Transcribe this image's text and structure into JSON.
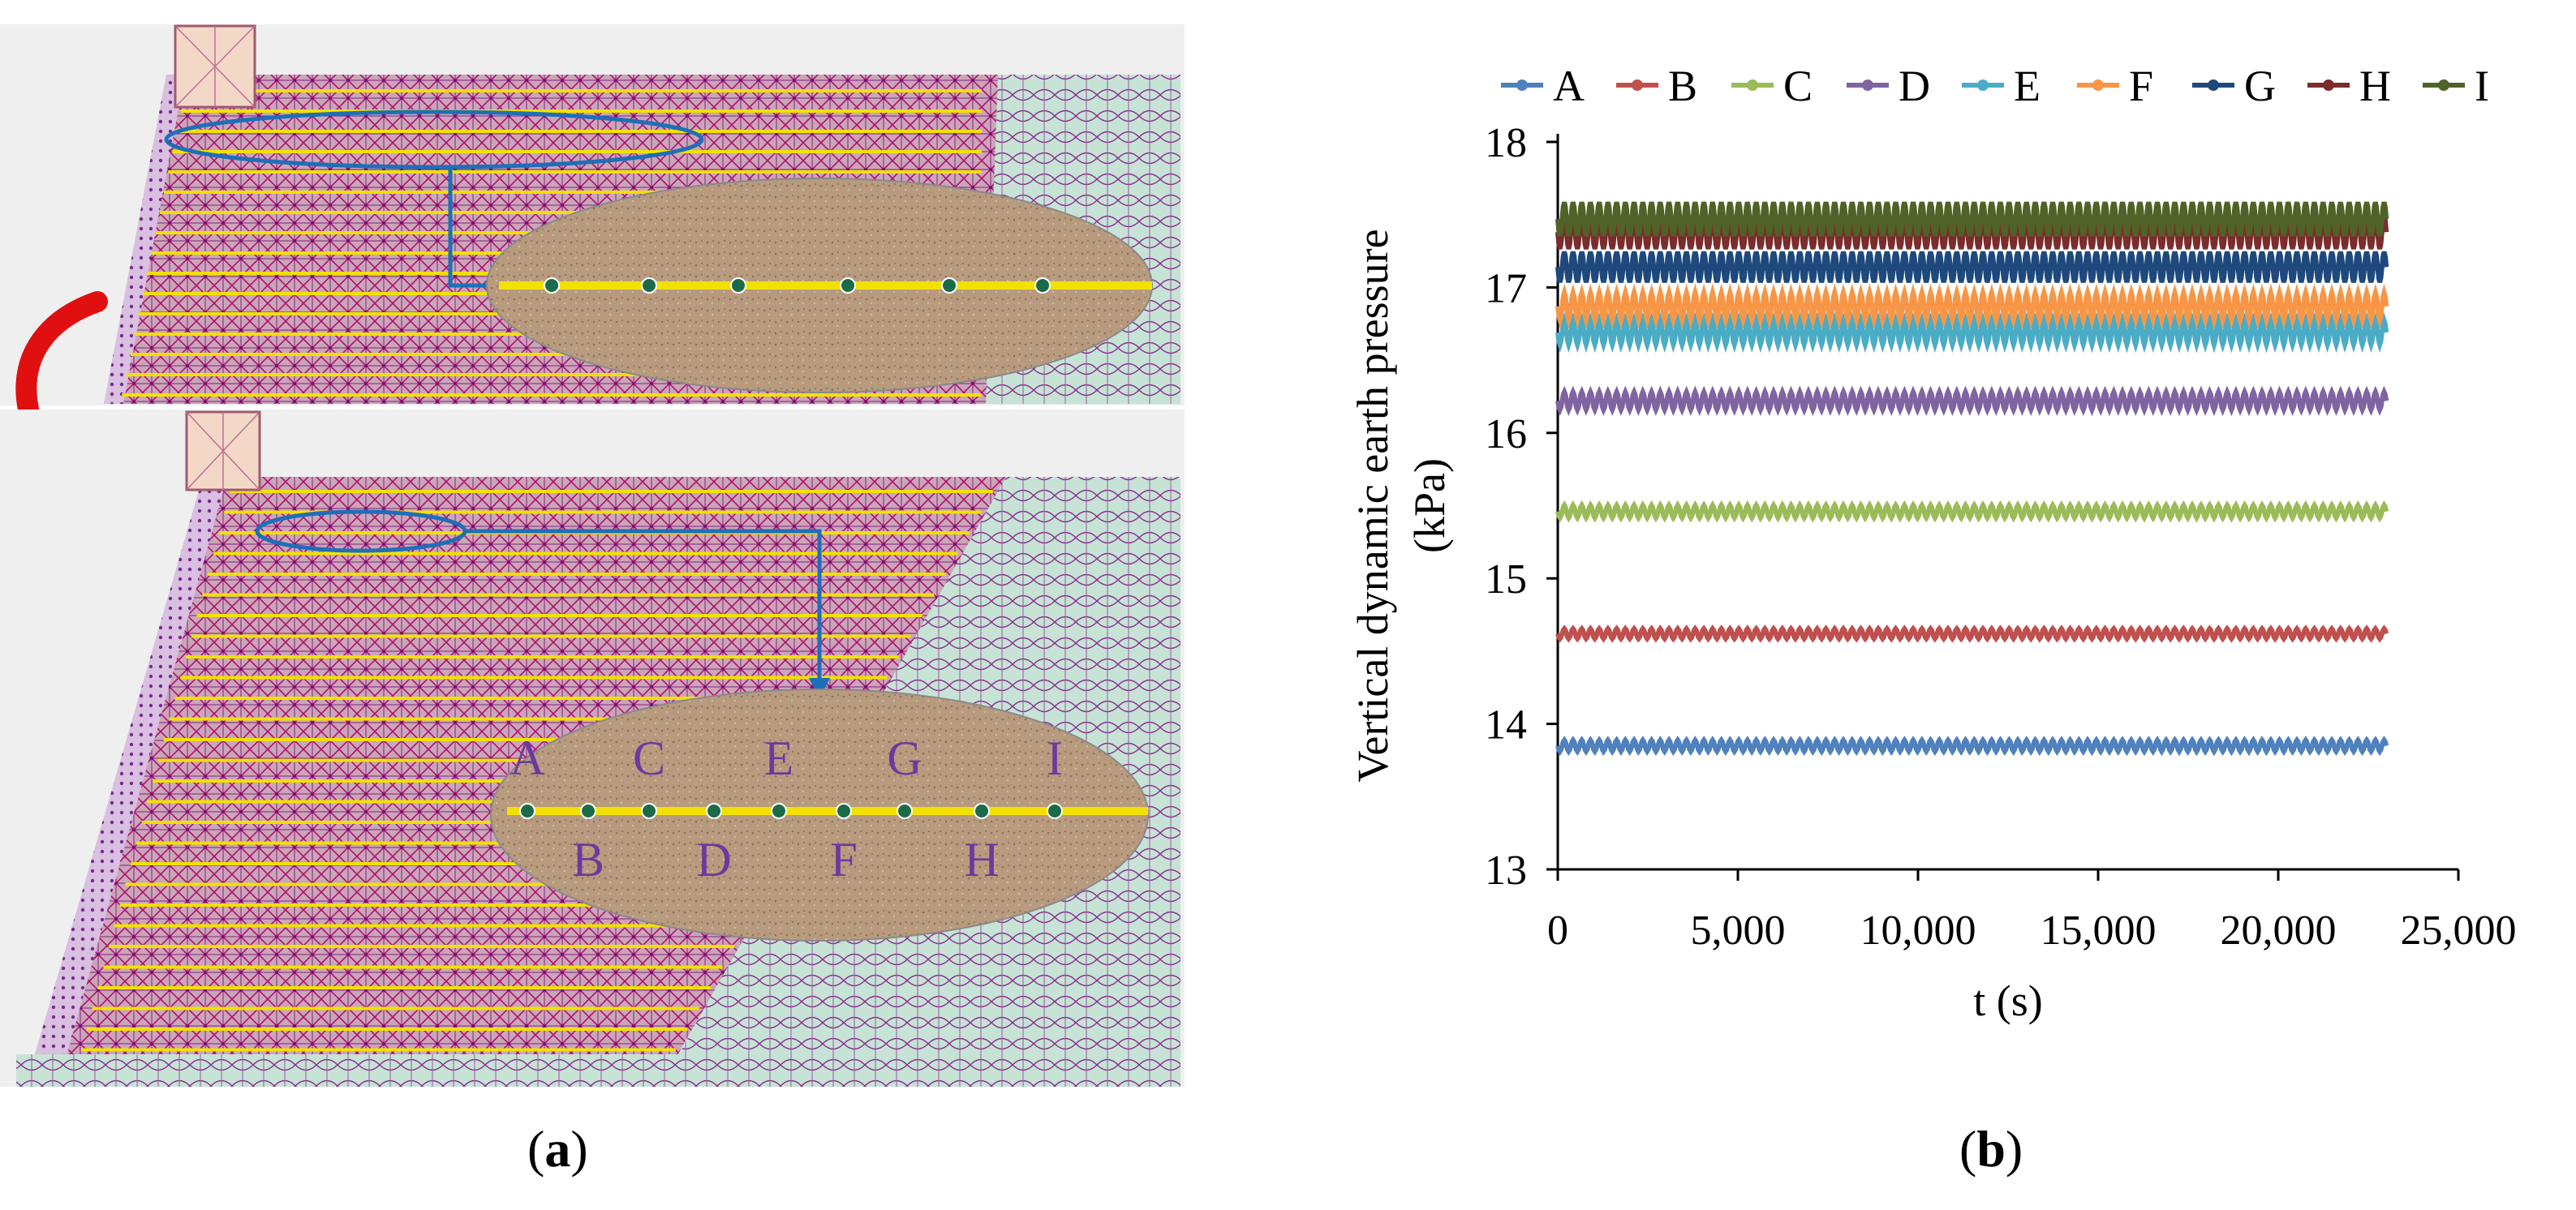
{
  "figure": {
    "caption_a": {
      "open": "(",
      "letter": "a",
      "close": ")"
    },
    "caption_b": {
      "open": "(",
      "letter": "b",
      "close": ")"
    }
  },
  "diagram": {
    "point_labels": [
      "A",
      "B",
      "C",
      "D",
      "E",
      "F",
      "G",
      "H",
      "I"
    ],
    "colors": {
      "background": "#efefef",
      "mesh_fill": "#c8a3b6",
      "mesh_line": "#a0005a",
      "reinforcement": "#f2e100",
      "soil": "#b79a7c",
      "ellipse_outline": "#1d6fb8",
      "arrow_red": "#e01010",
      "point_fill": "#1b6b4a",
      "label_purple": "#6a3aa0",
      "zone_green": "#bfe0cf"
    }
  },
  "chart_data": {
    "type": "line",
    "title": "",
    "xlabel": "t (s)",
    "ylabel_line1": "Vertical dynamic earth pressure",
    "ylabel_line2": "(kPa)",
    "xlim": [
      0,
      25000
    ],
    "ylim": [
      13,
      18
    ],
    "x_ticks": [
      0,
      5000,
      10000,
      15000,
      20000,
      25000
    ],
    "x_tick_labels": [
      "0",
      "5,000",
      "10,000",
      "15,000",
      "20,000",
      "25,000"
    ],
    "y_ticks": [
      13,
      14,
      15,
      16,
      17,
      18
    ],
    "y_tick_labels": [
      "13",
      "14",
      "15",
      "16",
      "17",
      "18"
    ],
    "x_range_data": [
      0,
      23000
    ],
    "legend_position": "top",
    "series": [
      {
        "name": "A",
        "value": 13.85,
        "amplitude": 0.01,
        "color": "#4f81bd"
      },
      {
        "name": "B",
        "value": 14.62,
        "amplitude": 0.008,
        "color": "#c0504d"
      },
      {
        "name": "C",
        "value": 15.46,
        "amplitude": 0.012,
        "color": "#9bbb59"
      },
      {
        "name": "D",
        "value": 16.22,
        "amplitude": 0.02,
        "color": "#8064a2"
      },
      {
        "name": "E",
        "value": 16.69,
        "amplitude": 0.03,
        "color": "#4bacc6"
      },
      {
        "name": "F",
        "value": 16.87,
        "amplitude": 0.035,
        "color": "#f79646"
      },
      {
        "name": "G",
        "value": 17.14,
        "amplitude": 0.04,
        "color": "#1f497d"
      },
      {
        "name": "H",
        "value": 17.38,
        "amplitude": 0.045,
        "color": "#7b2c2c"
      },
      {
        "name": "I",
        "value": 17.47,
        "amplitude": 0.045,
        "color": "#4f6228"
      }
    ]
  }
}
